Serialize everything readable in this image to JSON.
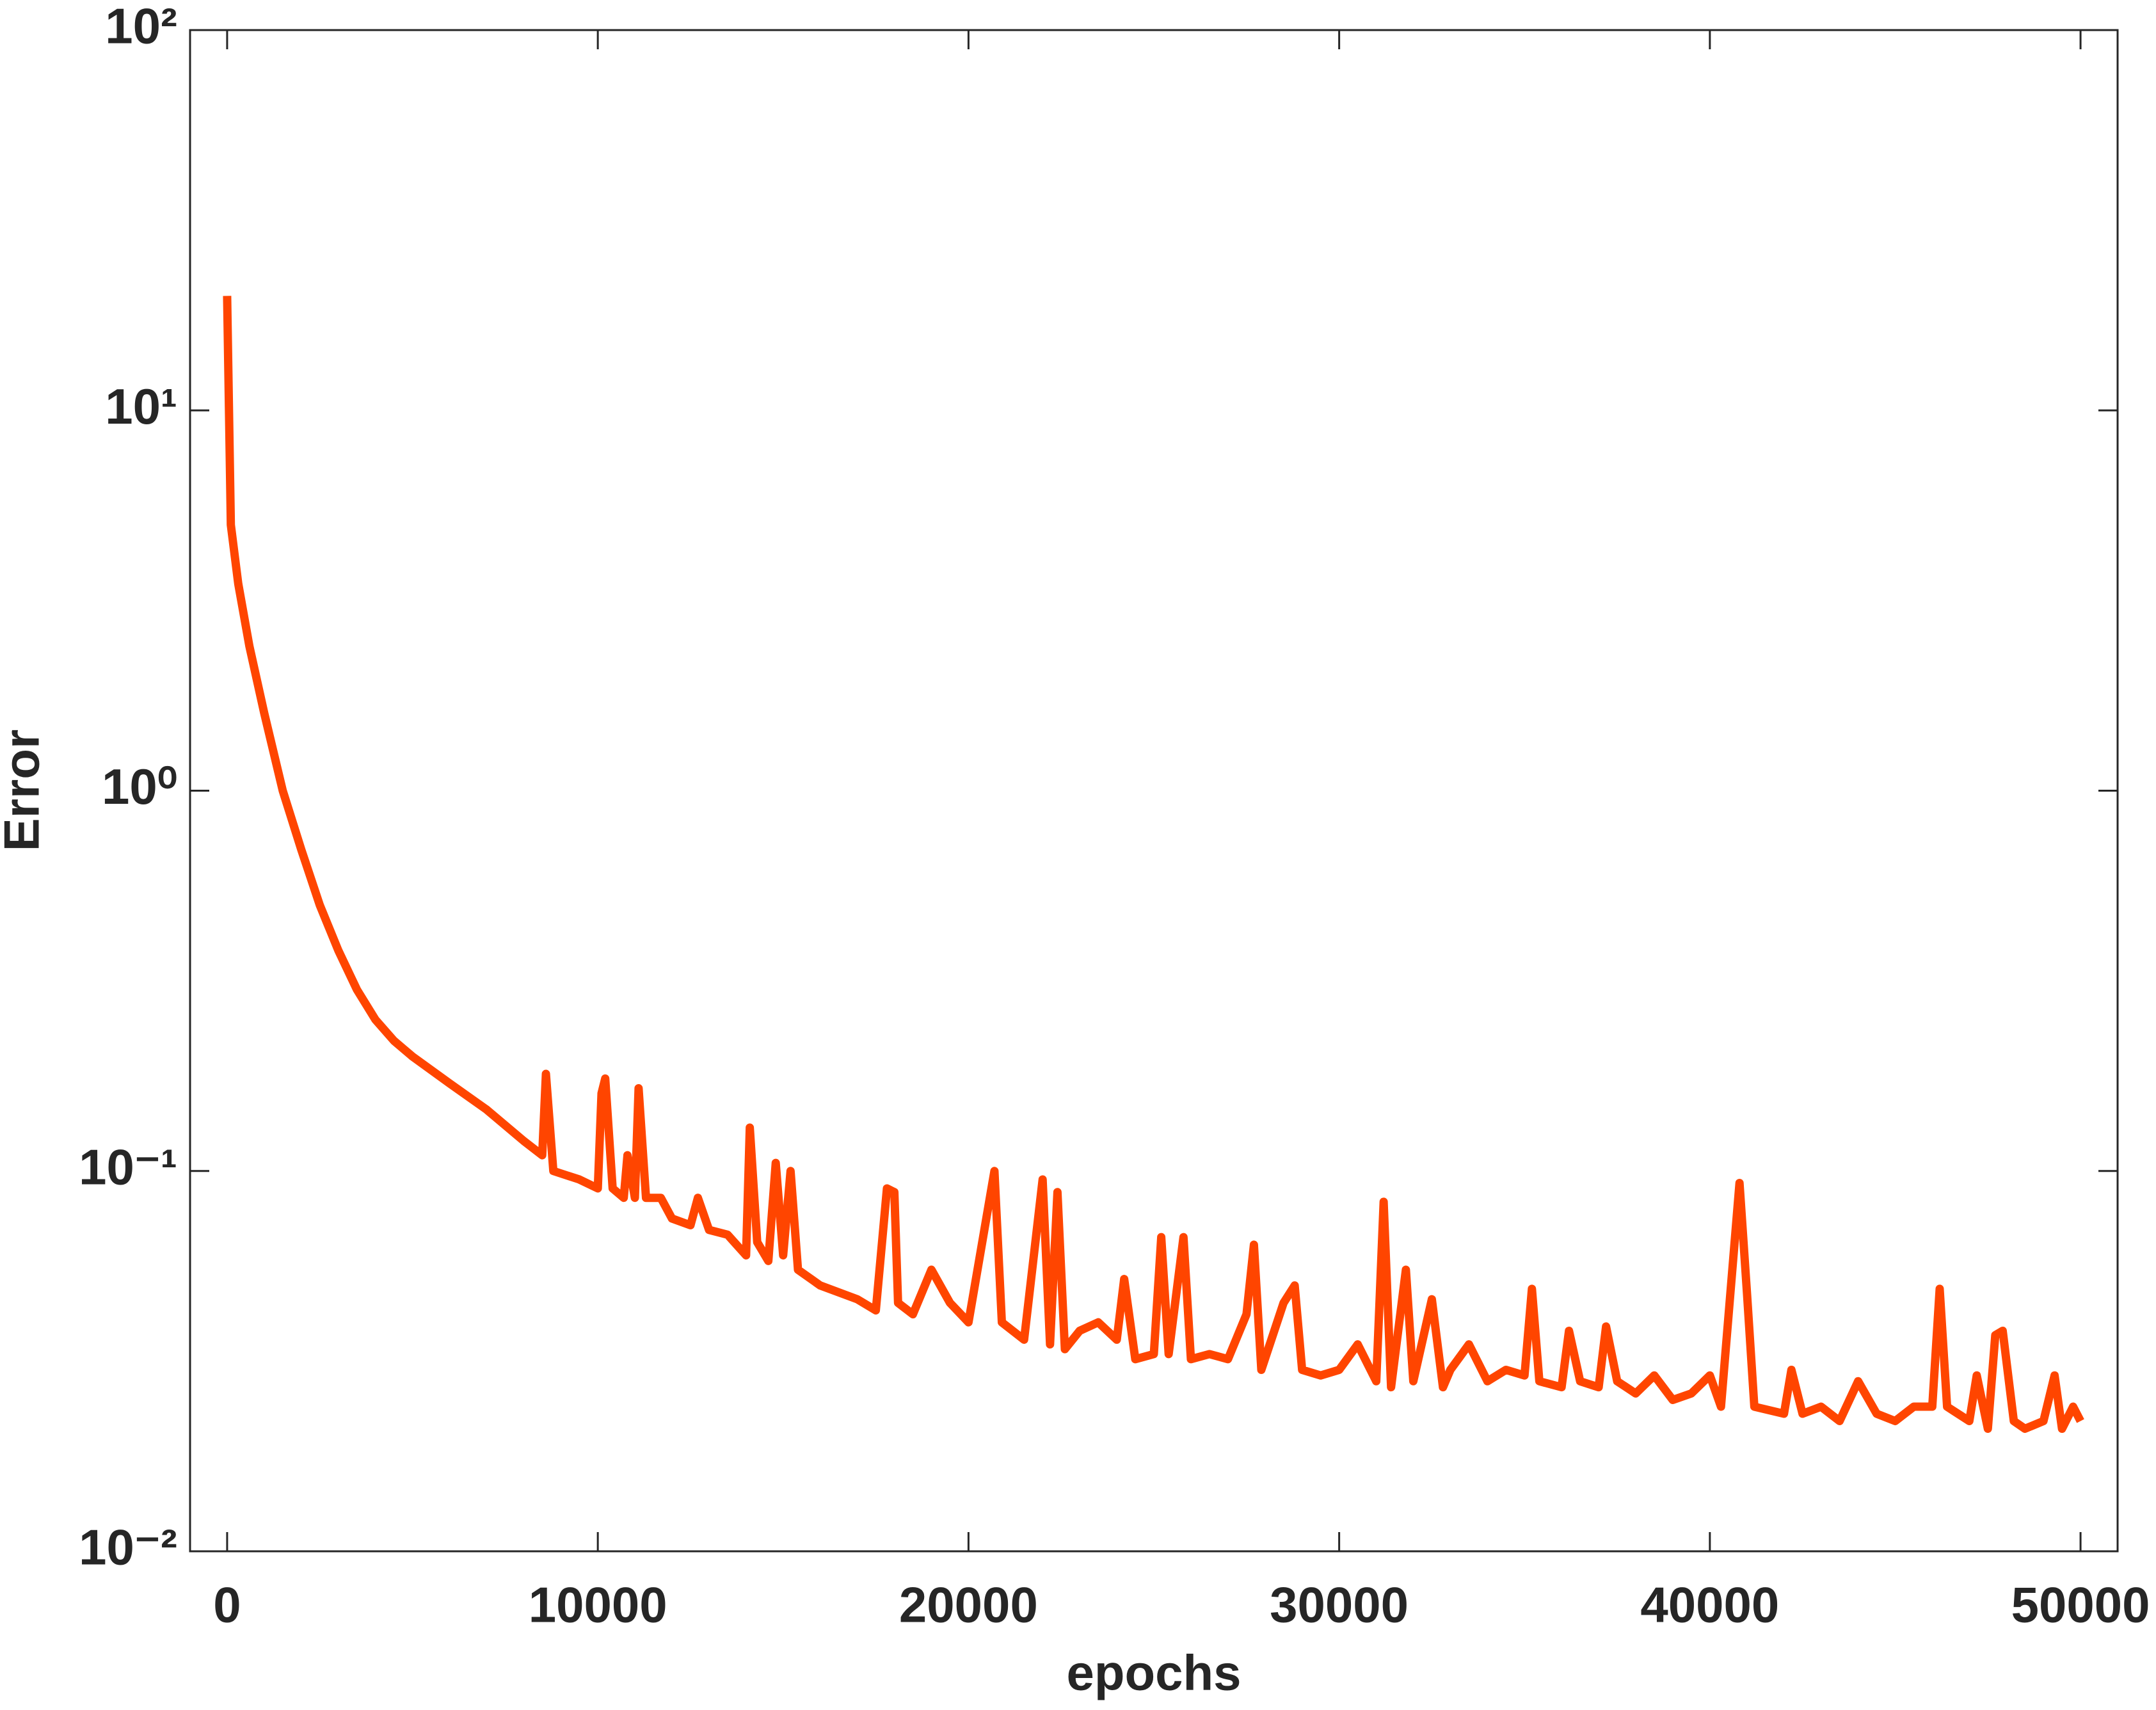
{
  "chart_data": {
    "type": "line",
    "xlabel": "epochs",
    "ylabel": "Error",
    "log_y": true,
    "xlim": [
      -1000,
      51000
    ],
    "xticks": [
      0,
      10000,
      20000,
      30000,
      40000,
      50000
    ],
    "ylim": [
      0.01,
      100
    ],
    "yticks": [
      {
        "value": 0.01,
        "label": "10⁻²"
      },
      {
        "value": 0.1,
        "label": "10⁻¹"
      },
      {
        "value": 1,
        "label": "10⁰"
      },
      {
        "value": 10,
        "label": "10¹"
      },
      {
        "value": 100,
        "label": "10²"
      }
    ],
    "series": [
      {
        "name": "Error",
        "color": "#ff4500",
        "x": [
          0,
          100,
          300,
          600,
          1000,
          1500,
          2000,
          2500,
          3000,
          3500,
          4000,
          4500,
          5000,
          6000,
          7000,
          8000,
          8500,
          8600,
          8800,
          9500,
          10000,
          10100,
          10200,
          10400,
          10700,
          10800,
          11000,
          11100,
          11300,
          11700,
          12000,
          12500,
          12700,
          13000,
          13500,
          14000,
          14100,
          14300,
          14600,
          14800,
          15000,
          15200,
          15400,
          16000,
          17000,
          17500,
          17800,
          18000,
          18100,
          18500,
          19000,
          19500,
          20000,
          20700,
          20900,
          21500,
          22000,
          22200,
          22400,
          22600,
          23000,
          23500,
          24000,
          24200,
          24500,
          25000,
          25200,
          25400,
          25800,
          26000,
          26500,
          27000,
          27500,
          27700,
          27900,
          28500,
          28800,
          29000,
          29500,
          30000,
          30500,
          31000,
          31200,
          31400,
          31800,
          32000,
          32500,
          32800,
          33000,
          33500,
          34000,
          34500,
          35000,
          35200,
          35400,
          36000,
          36200,
          36500,
          37000,
          37200,
          37500,
          38000,
          38500,
          39000,
          39500,
          40000,
          40300,
          40800,
          41000,
          41200,
          42000,
          42200,
          42500,
          43000,
          43500,
          44000,
          44500,
          45000,
          45500,
          46000,
          46200,
          46400,
          47000,
          47200,
          47500,
          47700,
          47900,
          48200,
          48500,
          49000,
          49300,
          49500,
          49800,
          50000
        ],
        "values": [
          20,
          5,
          3.5,
          2.4,
          1.6,
          1.0,
          0.7,
          0.5,
          0.38,
          0.3,
          0.25,
          0.22,
          0.2,
          0.17,
          0.145,
          0.12,
          0.11,
          0.18,
          0.1,
          0.095,
          0.09,
          0.16,
          0.175,
          0.09,
          0.085,
          0.11,
          0.085,
          0.165,
          0.085,
          0.085,
          0.075,
          0.072,
          0.085,
          0.07,
          0.068,
          0.06,
          0.13,
          0.065,
          0.058,
          0.105,
          0.06,
          0.1,
          0.055,
          0.05,
          0.046,
          0.043,
          0.09,
          0.088,
          0.045,
          0.042,
          0.055,
          0.045,
          0.04,
          0.1,
          0.04,
          0.036,
          0.095,
          0.035,
          0.088,
          0.034,
          0.038,
          0.04,
          0.036,
          0.052,
          0.032,
          0.033,
          0.067,
          0.033,
          0.067,
          0.032,
          0.033,
          0.032,
          0.042,
          0.064,
          0.03,
          0.045,
          0.05,
          0.03,
          0.029,
          0.03,
          0.035,
          0.028,
          0.083,
          0.027,
          0.055,
          0.028,
          0.046,
          0.027,
          0.03,
          0.035,
          0.028,
          0.03,
          0.029,
          0.049,
          0.028,
          0.027,
          0.038,
          0.028,
          0.027,
          0.039,
          0.028,
          0.026,
          0.029,
          0.025,
          0.026,
          0.029,
          0.024,
          0.093,
          0.048,
          0.024,
          0.023,
          0.03,
          0.023,
          0.024,
          0.022,
          0.028,
          0.023,
          0.022,
          0.024,
          0.024,
          0.049,
          0.024,
          0.022,
          0.029,
          0.021,
          0.037,
          0.038,
          0.022,
          0.021,
          0.022,
          0.029,
          0.021,
          0.024,
          0.022
        ]
      }
    ]
  }
}
